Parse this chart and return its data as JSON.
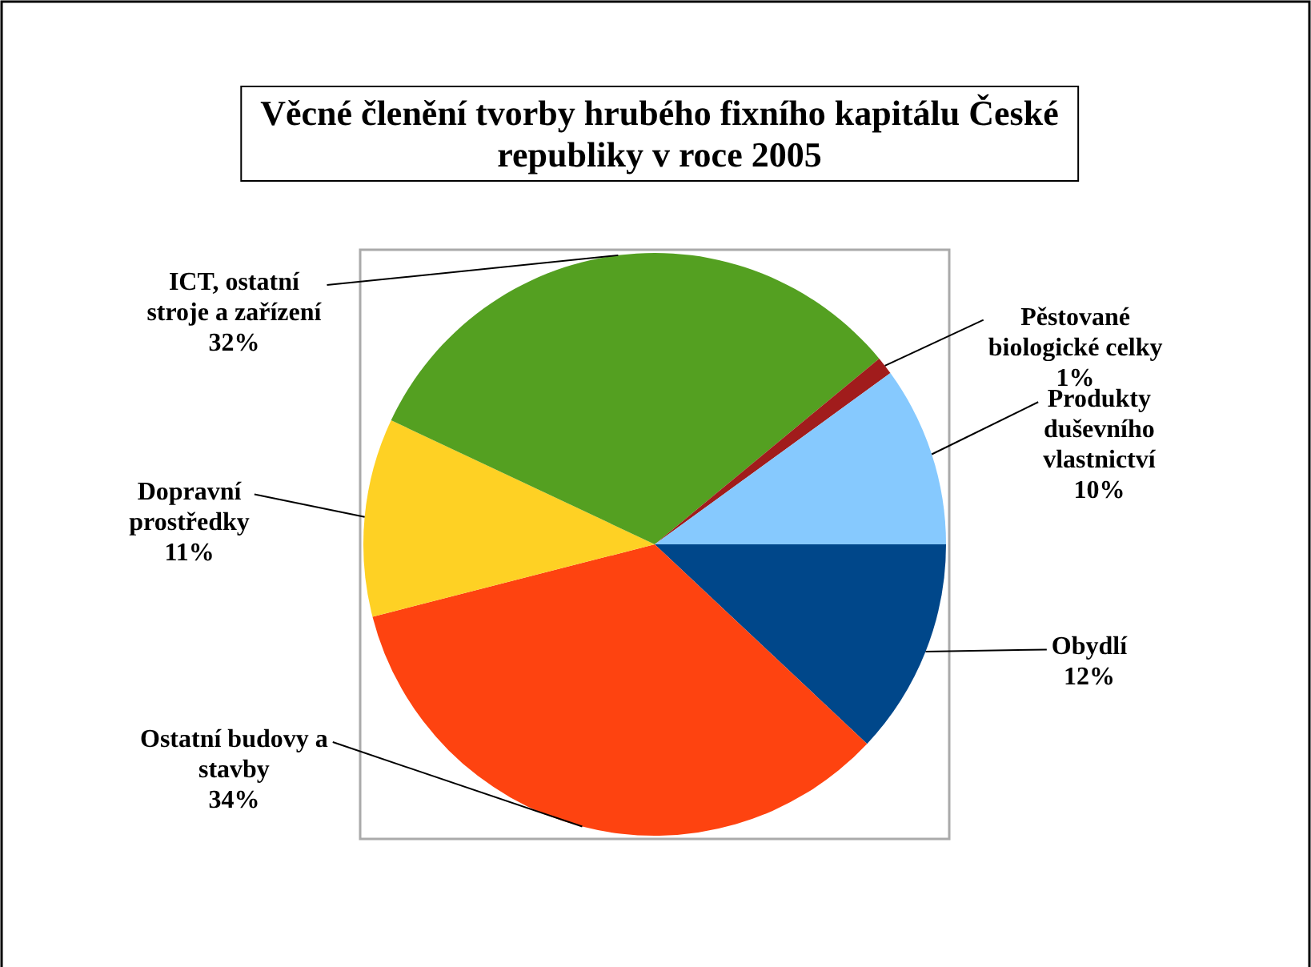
{
  "chart_data": {
    "type": "pie",
    "title": "Věcné členění tvorby hrubého fixního kapitálu České republiky v roce 2005",
    "categories": [
      "Obydlí",
      "Ostatní budovy a stavby",
      "Dopravní prostředky",
      "ICT, ostatní stroje a zařízení",
      "Pěstované biologické celky",
      "Produkty duševního vlastnictví"
    ],
    "values": [
      12,
      34,
      11,
      32,
      1,
      10
    ],
    "value_labels": [
      "12%",
      "34%",
      "11%",
      "32%",
      "1%",
      "10%"
    ],
    "colors": [
      "#00478a",
      "#fe4310",
      "#fed124",
      "#54a021",
      "#a11c1c",
      "#86c9fe"
    ],
    "legend": false
  }
}
